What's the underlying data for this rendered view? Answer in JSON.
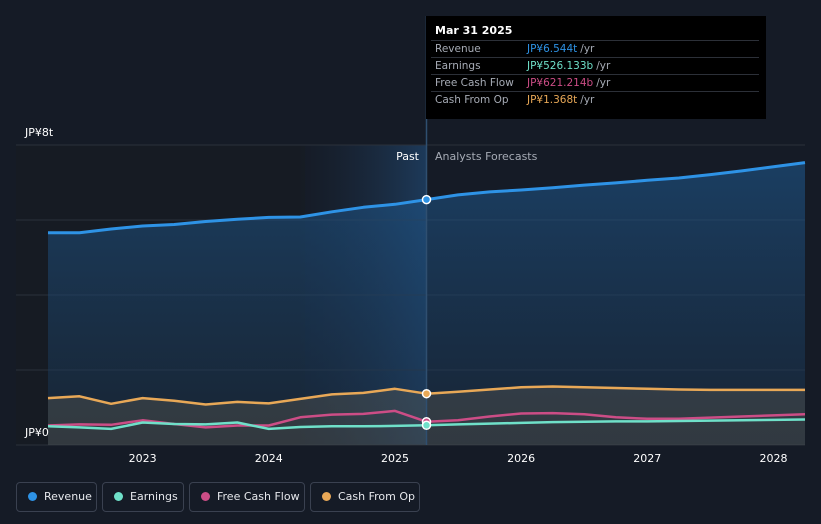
{
  "chart_data": {
    "type": "line",
    "y_axis": {
      "min": 0,
      "max": 8,
      "unit": "JP¥ trillion",
      "tick_labels": [
        "JP¥8t",
        "JP¥0"
      ]
    },
    "x_axis": {
      "tick_labels": [
        "2023",
        "2024",
        "2025",
        "2026",
        "2027",
        "2028"
      ]
    },
    "past_label": "Past",
    "forecast_label": "Analysts Forecasts",
    "divider_x": 2025.25,
    "series": [
      {
        "name": "Revenue",
        "color": "#2e93e6",
        "area": true,
        "points": [
          [
            2022.25,
            5.66
          ],
          [
            2022.5,
            5.66
          ],
          [
            2022.75,
            5.76
          ],
          [
            2023.0,
            5.84
          ],
          [
            2023.25,
            5.88
          ],
          [
            2023.5,
            5.96
          ],
          [
            2023.75,
            6.02
          ],
          [
            2024.0,
            6.07
          ],
          [
            2024.25,
            6.08
          ],
          [
            2024.5,
            6.22
          ],
          [
            2024.75,
            6.34
          ],
          [
            2025.0,
            6.42
          ],
          [
            2025.25,
            6.544
          ],
          [
            2025.5,
            6.67
          ],
          [
            2025.75,
            6.75
          ],
          [
            2026.0,
            6.8
          ],
          [
            2026.25,
            6.86
          ],
          [
            2026.5,
            6.93
          ],
          [
            2026.75,
            6.99
          ],
          [
            2027.0,
            7.06
          ],
          [
            2027.25,
            7.12
          ],
          [
            2027.5,
            7.21
          ],
          [
            2027.75,
            7.31
          ],
          [
            2028.0,
            7.42
          ],
          [
            2028.25,
            7.53
          ]
        ]
      },
      {
        "name": "Cash From Op",
        "color": "#e8a857",
        "area": true,
        "points": [
          [
            2022.25,
            1.25
          ],
          [
            2022.5,
            1.3
          ],
          [
            2022.75,
            1.1
          ],
          [
            2023.0,
            1.25
          ],
          [
            2023.25,
            1.18
          ],
          [
            2023.5,
            1.08
          ],
          [
            2023.75,
            1.15
          ],
          [
            2024.0,
            1.11
          ],
          [
            2024.25,
            1.23
          ],
          [
            2024.5,
            1.35
          ],
          [
            2024.75,
            1.39
          ],
          [
            2025.0,
            1.5
          ],
          [
            2025.25,
            1.368
          ],
          [
            2025.5,
            1.42
          ],
          [
            2025.75,
            1.48
          ],
          [
            2026.0,
            1.54
          ],
          [
            2026.25,
            1.56
          ],
          [
            2026.5,
            1.54
          ],
          [
            2026.75,
            1.52
          ],
          [
            2027.0,
            1.5
          ],
          [
            2027.25,
            1.48
          ],
          [
            2027.5,
            1.47
          ],
          [
            2027.75,
            1.47
          ],
          [
            2028.0,
            1.47
          ],
          [
            2028.25,
            1.47
          ]
        ]
      },
      {
        "name": "Free Cash Flow",
        "color": "#cc4d86",
        "area": false,
        "points": [
          [
            2022.25,
            0.52
          ],
          [
            2022.5,
            0.55
          ],
          [
            2022.75,
            0.54
          ],
          [
            2023.0,
            0.66
          ],
          [
            2023.25,
            0.56
          ],
          [
            2023.5,
            0.47
          ],
          [
            2023.75,
            0.52
          ],
          [
            2024.0,
            0.52
          ],
          [
            2024.25,
            0.74
          ],
          [
            2024.5,
            0.81
          ],
          [
            2024.75,
            0.83
          ],
          [
            2025.0,
            0.91
          ],
          [
            2025.25,
            0.621
          ],
          [
            2025.5,
            0.66
          ],
          [
            2025.75,
            0.76
          ],
          [
            2026.0,
            0.84
          ],
          [
            2026.25,
            0.85
          ],
          [
            2026.5,
            0.82
          ],
          [
            2026.75,
            0.74
          ],
          [
            2027.0,
            0.7
          ],
          [
            2027.25,
            0.7
          ],
          [
            2027.5,
            0.73
          ],
          [
            2027.75,
            0.76
          ],
          [
            2028.0,
            0.79
          ],
          [
            2028.25,
            0.82
          ]
        ]
      },
      {
        "name": "Earnings",
        "color": "#6fe0c9",
        "area": false,
        "points": [
          [
            2022.25,
            0.5
          ],
          [
            2022.5,
            0.47
          ],
          [
            2022.75,
            0.43
          ],
          [
            2023.0,
            0.6
          ],
          [
            2023.25,
            0.56
          ],
          [
            2023.5,
            0.55
          ],
          [
            2023.75,
            0.6
          ],
          [
            2024.0,
            0.43
          ],
          [
            2024.25,
            0.48
          ],
          [
            2024.5,
            0.5
          ],
          [
            2024.75,
            0.5
          ],
          [
            2025.0,
            0.51
          ],
          [
            2025.25,
            0.526
          ],
          [
            2025.5,
            0.55
          ],
          [
            2025.75,
            0.57
          ],
          [
            2026.0,
            0.59
          ],
          [
            2026.25,
            0.61
          ],
          [
            2026.5,
            0.62
          ],
          [
            2026.75,
            0.63
          ],
          [
            2027.0,
            0.63
          ],
          [
            2027.25,
            0.64
          ],
          [
            2027.5,
            0.65
          ],
          [
            2027.75,
            0.66
          ],
          [
            2028.0,
            0.67
          ],
          [
            2028.25,
            0.68
          ]
        ]
      }
    ]
  },
  "tooltip": {
    "date": "Mar 31 2025",
    "rows": [
      {
        "label": "Revenue",
        "value": "JP¥6.544t",
        "unit": "/yr",
        "color": "#2e93e6"
      },
      {
        "label": "Earnings",
        "value": "JP¥526.133b",
        "unit": "/yr",
        "color": "#6fe0c9"
      },
      {
        "label": "Free Cash Flow",
        "value": "JP¥621.214b",
        "unit": "/yr",
        "color": "#cc4d86"
      },
      {
        "label": "Cash From Op",
        "value": "JP¥1.368t",
        "unit": "/yr",
        "color": "#e8a857"
      }
    ]
  },
  "legend": [
    {
      "label": "Revenue",
      "color": "#2e93e6"
    },
    {
      "label": "Earnings",
      "color": "#6fe0c9"
    },
    {
      "label": "Free Cash Flow",
      "color": "#cc4d86"
    },
    {
      "label": "Cash From Op",
      "color": "#e8a857"
    }
  ]
}
